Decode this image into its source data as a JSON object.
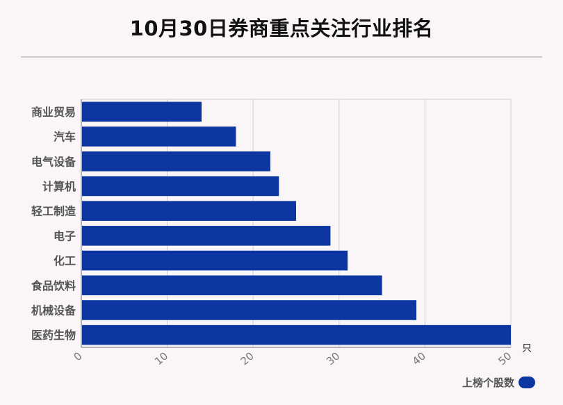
{
  "colors": {
    "bar": "#0e36a0",
    "grid": "#d2ced1",
    "axis": "#999999",
    "category_text": "#555555",
    "tick_text": "#777777"
  },
  "chart_data": {
    "type": "bar",
    "orientation": "horizontal",
    "title": "10月30日券商重点关注行业排名",
    "categories": [
      "商业贸易",
      "汽车",
      "电气设备",
      "计算机",
      "轻工制造",
      "电子",
      "化工",
      "食品饮料",
      "机械设备",
      "医药生物"
    ],
    "series": [
      {
        "name": "上榜个股数",
        "values": [
          14,
          18,
          22,
          23,
          25,
          29,
          31,
          35,
          39,
          50
        ]
      }
    ],
    "xlim": [
      0,
      50
    ],
    "xticks": [
      "0",
      "10",
      "20",
      "30",
      "40",
      "50"
    ],
    "xunit": "只",
    "grid": true,
    "legend_position": "bottom-right"
  }
}
